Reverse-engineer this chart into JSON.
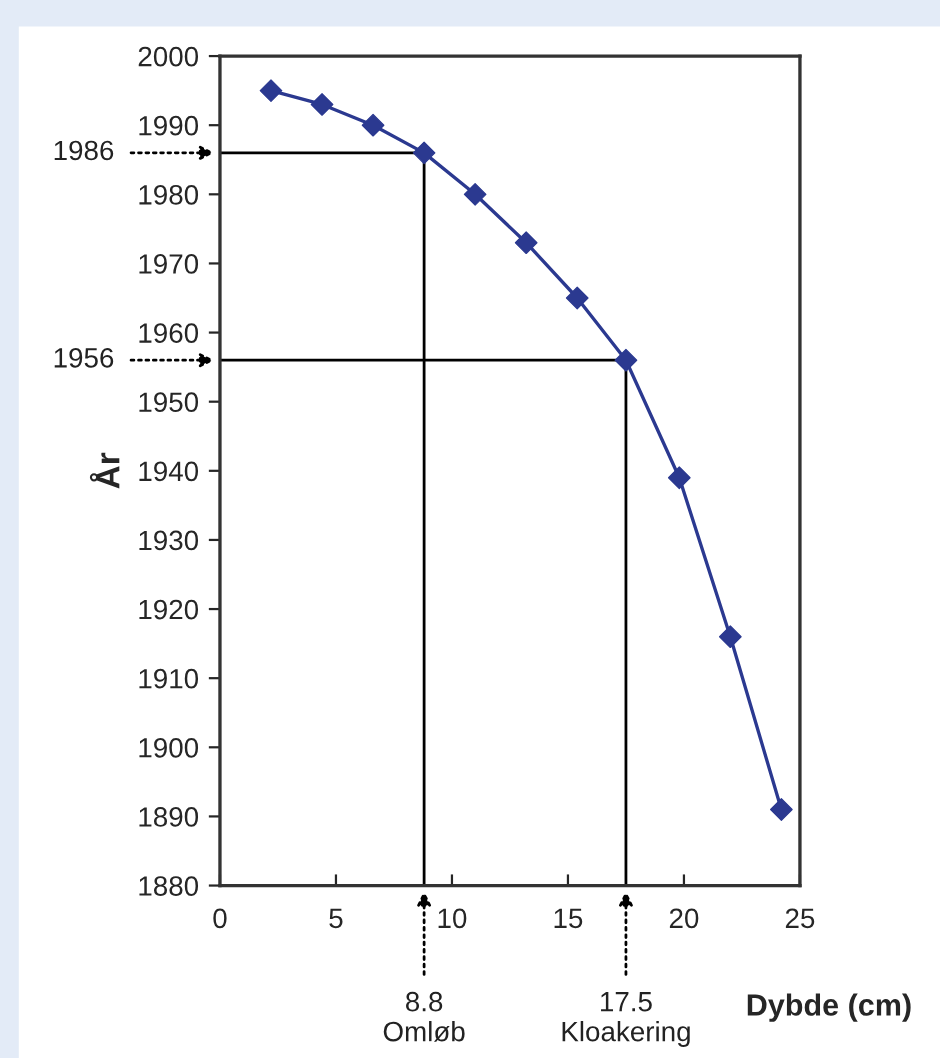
{
  "chart_data": {
    "type": "line",
    "xlabel": "Dybde (cm)",
    "ylabel": "År",
    "x": [
      2.2,
      4.4,
      6.6,
      8.8,
      11.0,
      13.2,
      15.4,
      17.5,
      19.8,
      22.0,
      24.2
    ],
    "series": [
      {
        "color": "#2b3990",
        "values": [
          1995,
          1993,
          1990,
          1986,
          1980,
          1973,
          1965,
          1956,
          1939,
          1916,
          1891
        ]
      }
    ],
    "xlim": [
      0,
      25
    ],
    "xticks": [
      0,
      5,
      10,
      15,
      20,
      25
    ],
    "ylim": [
      1880,
      2000
    ],
    "yticks": [
      1880,
      1890,
      1900,
      1910,
      1920,
      1930,
      1940,
      1950,
      1960,
      1970,
      1980,
      1990,
      2000
    ],
    "marker": "diamond",
    "line_style": "solid",
    "grid": false,
    "legend": false,
    "ref_lines": [
      {
        "axis": "x",
        "value": 8.8,
        "label": "8.8\nOmløb",
        "color": "#000000"
      },
      {
        "axis": "x",
        "value": 17.5,
        "label": "17.5\nKloakering",
        "color": "#000000"
      },
      {
        "axis": "y",
        "value": 1986,
        "label": "1986",
        "color": "#000000"
      },
      {
        "axis": "y",
        "value": 1956,
        "label": "1956",
        "color": "#000000"
      }
    ]
  }
}
